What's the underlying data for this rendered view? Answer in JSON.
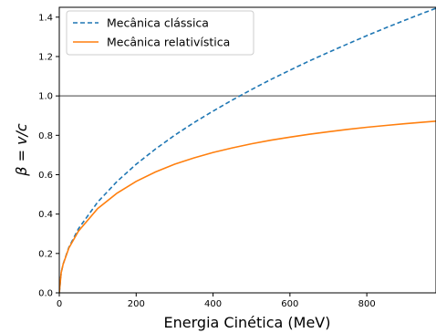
{
  "chart_data": {
    "type": "line",
    "xlabel": "Energia Cinética (MeV)",
    "ylabel": "β = v/c",
    "xlim": [
      0,
      980
    ],
    "ylim": [
      0,
      1.45
    ],
    "x_ticks": [
      0,
      200,
      400,
      600,
      800
    ],
    "x_tick_labels": [
      "0",
      "200",
      "400",
      "600",
      "800"
    ],
    "y_ticks": [
      0.0,
      0.2,
      0.4,
      0.6,
      0.8,
      1.0,
      1.2,
      1.4
    ],
    "y_tick_labels": [
      "0.0",
      "0.2",
      "0.4",
      "0.6",
      "0.8",
      "1.0",
      "1.2",
      "1.4"
    ],
    "grid": false,
    "legend_position": "top-left",
    "series": [
      {
        "name": "Mecânica clássica",
        "style": "dashed",
        "color": "#1f77b4",
        "x": [
          0,
          5,
          10,
          25,
          50,
          100,
          150,
          200,
          250,
          300,
          350,
          400,
          450,
          500,
          550,
          600,
          650,
          700,
          750,
          800,
          850,
          900,
          950,
          980
        ],
        "y": [
          0,
          0.103,
          0.146,
          0.231,
          0.326,
          0.461,
          0.565,
          0.653,
          0.73,
          0.8,
          0.864,
          0.923,
          0.979,
          1.032,
          1.083,
          1.131,
          1.177,
          1.221,
          1.264,
          1.306,
          1.346,
          1.385,
          1.423,
          1.445
        ]
      },
      {
        "name": "Mecânica relativística",
        "style": "solid",
        "color": "#ff7f0e",
        "x": [
          0,
          5,
          10,
          25,
          50,
          100,
          150,
          200,
          250,
          300,
          350,
          400,
          450,
          500,
          550,
          600,
          650,
          700,
          750,
          800,
          850,
          900,
          950,
          980
        ],
        "y": [
          0,
          0.103,
          0.145,
          0.228,
          0.314,
          0.428,
          0.506,
          0.566,
          0.614,
          0.653,
          0.685,
          0.713,
          0.736,
          0.757,
          0.775,
          0.791,
          0.805,
          0.818,
          0.83,
          0.841,
          0.85,
          0.859,
          0.867,
          0.872
        ]
      }
    ],
    "reference_line": {
      "y": 1.0,
      "color": "#808080"
    }
  }
}
